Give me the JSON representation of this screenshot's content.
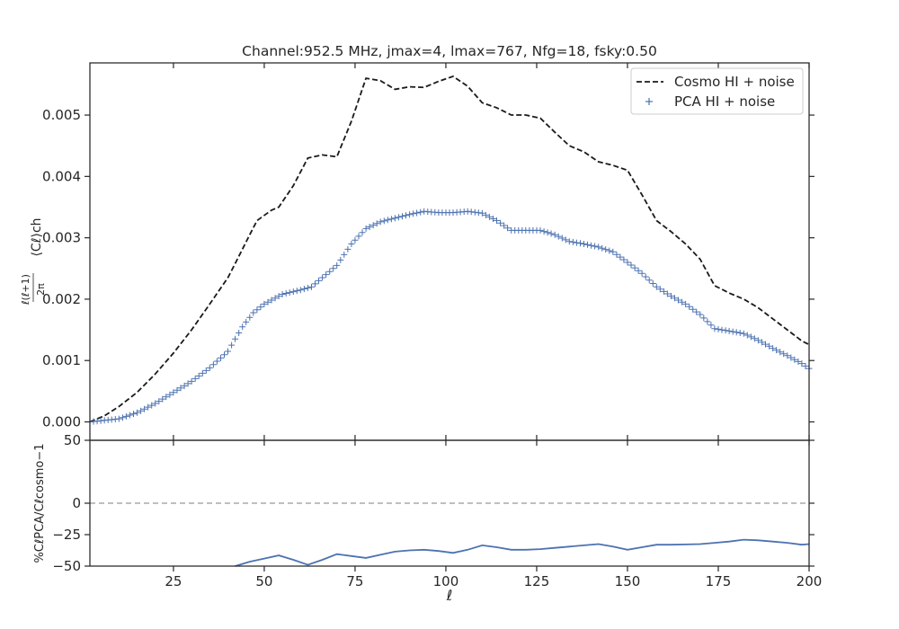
{
  "chart_data": {
    "type": "line",
    "title": "Channel:952.5 MHz, jmax=4, lmax=767, Nfg=18, fsky:0.50",
    "xlabel": "ℓ",
    "xlim": [
      2,
      200
    ],
    "x_ticks": [
      25,
      50,
      75,
      100,
      125,
      150,
      175,
      200
    ],
    "top_panel": {
      "ylabel_num": "ℓ(ℓ+1)",
      "ylabel_den": "2π",
      "ylabel_rest": "⟨Cℓ⟩ch",
      "ylim": [
        -0.0003,
        0.00585
      ],
      "y_ticks": [
        0,
        0.001,
        0.002,
        0.003,
        0.004,
        0.005
      ],
      "y_tick_labels": [
        "0.000",
        "0.001",
        "0.002",
        "0.003",
        "0.004",
        "0.005"
      ],
      "legend": {
        "placement": "top-right",
        "entries": [
          "Cosmo HI + noise",
          "PCA HI + noise"
        ]
      },
      "series": [
        {
          "name": "Cosmo HI + noise",
          "style": "dashed",
          "color": "#1a1a1a",
          "points": [
            [
              2,
              0
            ],
            [
              6,
              0.0001
            ],
            [
              10,
              0.00025
            ],
            [
              15,
              0.00048
            ],
            [
              20,
              0.00078
            ],
            [
              25,
              0.00112
            ],
            [
              30,
              0.0015
            ],
            [
              35,
              0.00192
            ],
            [
              40,
              0.00235
            ],
            [
              42,
              0.00258
            ],
            [
              46,
              0.00305
            ],
            [
              48,
              0.00328
            ],
            [
              52,
              0.00345
            ],
            [
              54,
              0.0035
            ],
            [
              58,
              0.00385
            ],
            [
              62,
              0.0043
            ],
            [
              66,
              0.00435
            ],
            [
              70,
              0.00432
            ],
            [
              74,
              0.0049
            ],
            [
              78,
              0.0056
            ],
            [
              82,
              0.00556
            ],
            [
              86,
              0.00542
            ],
            [
              90,
              0.00546
            ],
            [
              94,
              0.00545
            ],
            [
              98,
              0.00555
            ],
            [
              102,
              0.00563
            ],
            [
              106,
              0.00547
            ],
            [
              110,
              0.0052
            ],
            [
              114,
              0.00512
            ],
            [
              118,
              0.005
            ],
            [
              122,
              0.005
            ],
            [
              126,
              0.00495
            ],
            [
              130,
              0.00472
            ],
            [
              134,
              0.0045
            ],
            [
              138,
              0.0044
            ],
            [
              142,
              0.00424
            ],
            [
              146,
              0.00418
            ],
            [
              150,
              0.0041
            ],
            [
              154,
              0.0037
            ],
            [
              158,
              0.00328
            ],
            [
              162,
              0.0031
            ],
            [
              166,
              0.0029
            ],
            [
              170,
              0.00265
            ],
            [
              174,
              0.00222
            ],
            [
              178,
              0.0021
            ],
            [
              182,
              0.002
            ],
            [
              186,
              0.00186
            ],
            [
              190,
              0.00168
            ],
            [
              194,
              0.0015
            ],
            [
              198,
              0.00132
            ],
            [
              200,
              0.00126
            ]
          ]
        },
        {
          "name": "PCA HI + noise",
          "style": "plus",
          "color": "#4c72b0",
          "points": [
            [
              2,
              0
            ],
            [
              10,
              5e-05
            ],
            [
              15,
              0.00015
            ],
            [
              20,
              0.0003
            ],
            [
              25,
              0.00048
            ],
            [
              30,
              0.00066
            ],
            [
              35,
              0.00088
            ],
            [
              40,
              0.00115
            ],
            [
              44,
              0.00155
            ],
            [
              47,
              0.00178
            ],
            [
              50,
              0.00192
            ],
            [
              55,
              0.00208
            ],
            [
              60,
              0.00215
            ],
            [
              63,
              0.0022
            ],
            [
              66,
              0.00235
            ],
            [
              70,
              0.00255
            ],
            [
              74,
              0.0029
            ],
            [
              78,
              0.00315
            ],
            [
              82,
              0.00326
            ],
            [
              86,
              0.00332
            ],
            [
              90,
              0.00338
            ],
            [
              94,
              0.00343
            ],
            [
              98,
              0.00341
            ],
            [
              102,
              0.00341
            ],
            [
              106,
              0.00343
            ],
            [
              110,
              0.0034
            ],
            [
              114,
              0.00328
            ],
            [
              118,
              0.00312
            ],
            [
              122,
              0.00312
            ],
            [
              126,
              0.00312
            ],
            [
              130,
              0.00305
            ],
            [
              134,
              0.00294
            ],
            [
              138,
              0.0029
            ],
            [
              142,
              0.00285
            ],
            [
              146,
              0.00277
            ],
            [
              150,
              0.0026
            ],
            [
              154,
              0.00242
            ],
            [
              158,
              0.0022
            ],
            [
              162,
              0.00205
            ],
            [
              166,
              0.00192
            ],
            [
              170,
              0.00175
            ],
            [
              174,
              0.00152
            ],
            [
              178,
              0.00148
            ],
            [
              182,
              0.00144
            ],
            [
              186,
              0.00133
            ],
            [
              190,
              0.0012
            ],
            [
              194,
              0.00108
            ],
            [
              198,
              0.00095
            ],
            [
              200,
              0.00087
            ]
          ]
        }
      ]
    },
    "bottom_panel": {
      "ylabel": "%CℓPCA/Cℓcosmo−1",
      "ylim": [
        -50,
        50
      ],
      "y_ticks": [
        50,
        0,
        -25,
        -50
      ],
      "y_tick_labels": [
        "50",
        "0",
        "−25",
        "−50"
      ],
      "reference_line": 0,
      "series": [
        {
          "name": "ratio",
          "color": "#4c72b0",
          "points": [
            [
              42,
              -50
            ],
            [
              46,
              -46.5
            ],
            [
              50,
              -44
            ],
            [
              54,
              -41.5
            ],
            [
              58,
              -45
            ],
            [
              62,
              -49
            ],
            [
              66,
              -45
            ],
            [
              70,
              -40.5
            ],
            [
              74,
              -42
            ],
            [
              78,
              -43.5
            ],
            [
              82,
              -41
            ],
            [
              86,
              -38.5
            ],
            [
              90,
              -37.5
            ],
            [
              94,
              -37
            ],
            [
              98,
              -38
            ],
            [
              102,
              -39.5
            ],
            [
              106,
              -37
            ],
            [
              110,
              -33.5
            ],
            [
              114,
              -35
            ],
            [
              118,
              -37
            ],
            [
              122,
              -37
            ],
            [
              126,
              -36.5
            ],
            [
              130,
              -35.5
            ],
            [
              134,
              -34.5
            ],
            [
              138,
              -33.5
            ],
            [
              142,
              -32.5
            ],
            [
              146,
              -34.5
            ],
            [
              150,
              -37
            ],
            [
              154,
              -35
            ],
            [
              158,
              -33
            ],
            [
              162,
              -33
            ],
            [
              166,
              -32.8
            ],
            [
              170,
              -32.5
            ],
            [
              174,
              -31.5
            ],
            [
              178,
              -30.5
            ],
            [
              182,
              -29
            ],
            [
              186,
              -29.5
            ],
            [
              190,
              -30.5
            ],
            [
              194,
              -31.5
            ],
            [
              198,
              -33
            ],
            [
              200,
              -32.5
            ]
          ]
        }
      ]
    }
  }
}
